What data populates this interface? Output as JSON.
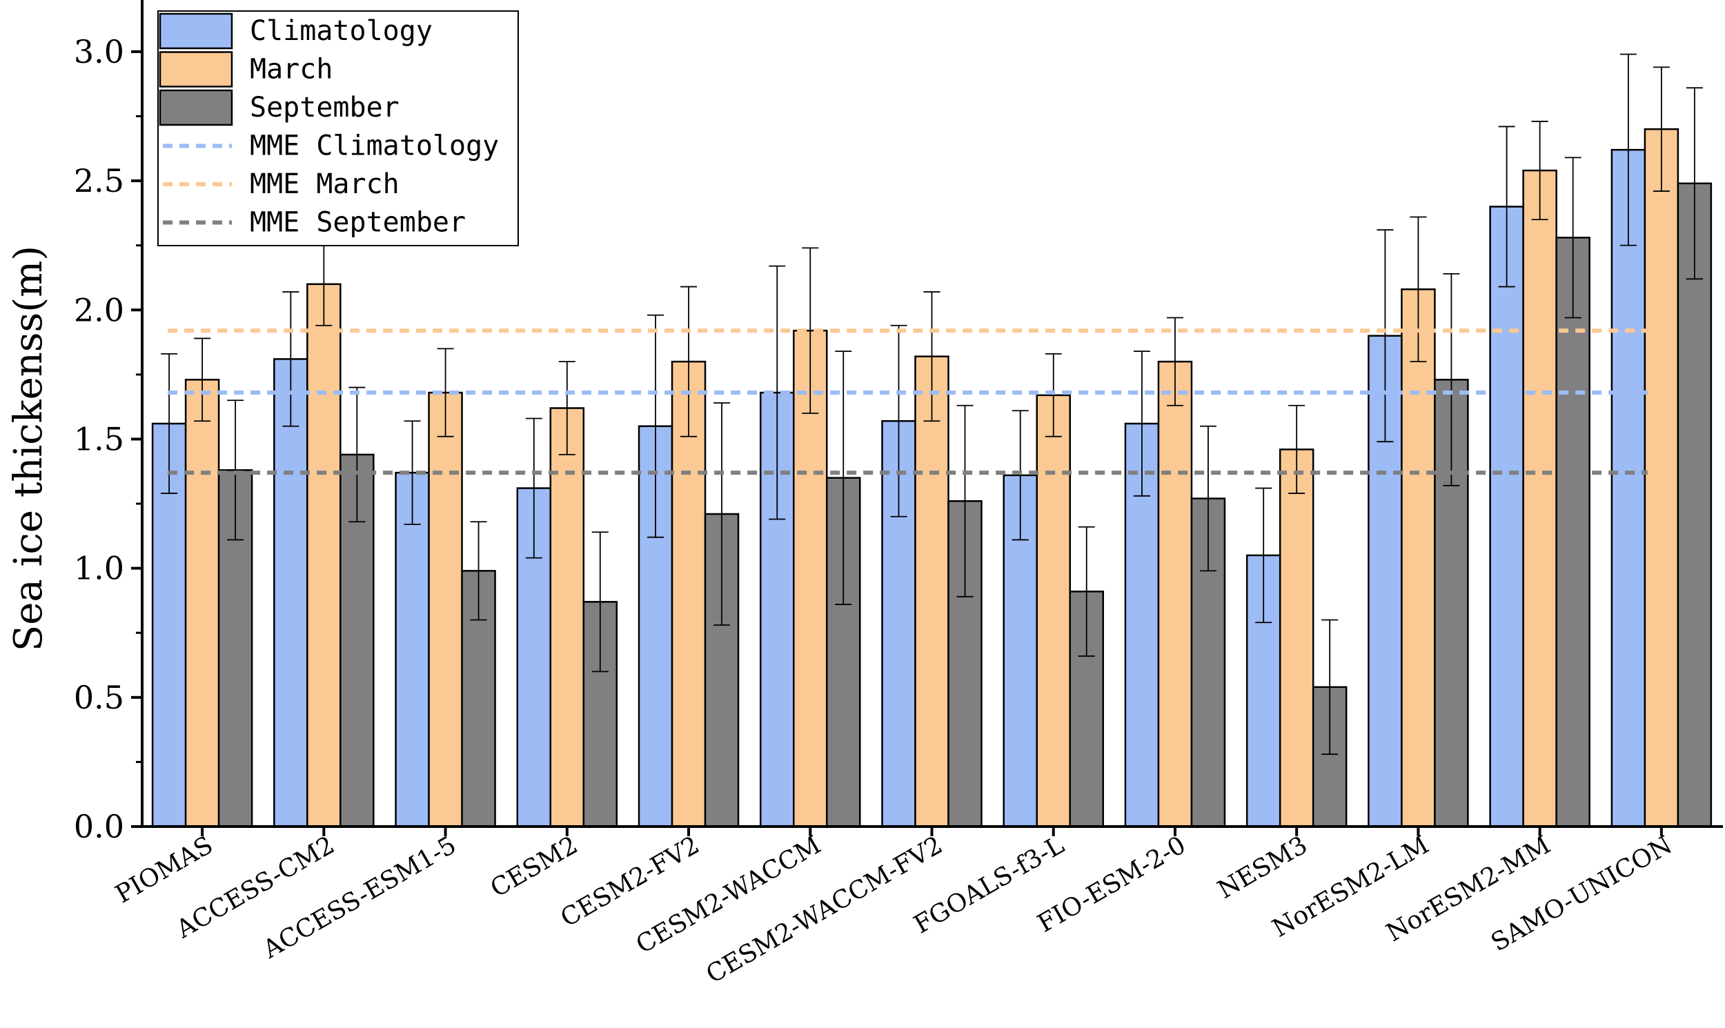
{
  "chart_data": {
    "type": "bar",
    "title": "",
    "xlabel": "",
    "ylabel": "Sea ice thickenss(m)",
    "ylim": [
      0,
      3.2
    ],
    "yticks": [
      0.0,
      0.5,
      1.0,
      1.5,
      2.0,
      2.5,
      3.0
    ],
    "ytick_labels": [
      "0.0",
      "0.5",
      "1.0",
      "1.5",
      "2.0",
      "2.5",
      "3.0"
    ],
    "categories": [
      "PIOMAS",
      "ACCESS-CM2",
      "ACCESS-ESM1-5",
      "CESM2",
      "CESM2-FV2",
      "CESM2-WACCM",
      "CESM2-WACCM-FV2",
      "FGOALS-f3-L",
      "FIO-ESM-2-0",
      "NESM3",
      "NorESM2-LM",
      "NorESM2-MM",
      "SAMO-UNICON"
    ],
    "series": [
      {
        "name": "Climatology",
        "color": "#9dbbf5",
        "values": [
          1.56,
          1.81,
          1.37,
          1.31,
          1.55,
          1.68,
          1.57,
          1.36,
          1.56,
          1.05,
          1.9,
          2.4,
          2.62
        ],
        "errors": [
          0.27,
          0.26,
          0.2,
          0.27,
          0.43,
          0.49,
          0.37,
          0.25,
          0.28,
          0.26,
          0.41,
          0.31,
          0.37
        ]
      },
      {
        "name": "March",
        "color": "#fbc994",
        "values": [
          1.73,
          2.1,
          1.68,
          1.62,
          1.8,
          1.92,
          1.82,
          1.67,
          1.8,
          1.46,
          2.08,
          2.54,
          2.7
        ],
        "errors": [
          0.16,
          0.16,
          0.17,
          0.18,
          0.29,
          0.32,
          0.25,
          0.16,
          0.17,
          0.17,
          0.28,
          0.19,
          0.24
        ]
      },
      {
        "name": "September",
        "color": "#808080",
        "values": [
          1.38,
          1.44,
          0.99,
          0.87,
          1.21,
          1.35,
          1.26,
          0.91,
          1.27,
          0.54,
          1.73,
          2.28,
          2.49
        ],
        "errors": [
          0.27,
          0.26,
          0.19,
          0.27,
          0.43,
          0.49,
          0.37,
          0.25,
          0.28,
          0.26,
          0.41,
          0.31,
          0.37
        ]
      }
    ],
    "reference_lines": [
      {
        "name": "MME Climatology",
        "color": "#9dbbf5",
        "value": 1.68
      },
      {
        "name": "MME March",
        "color": "#fbc994",
        "value": 1.92
      },
      {
        "name": "MME September",
        "color": "#808080",
        "value": 1.37
      }
    ],
    "legend_position": "top-left",
    "grid": false
  }
}
